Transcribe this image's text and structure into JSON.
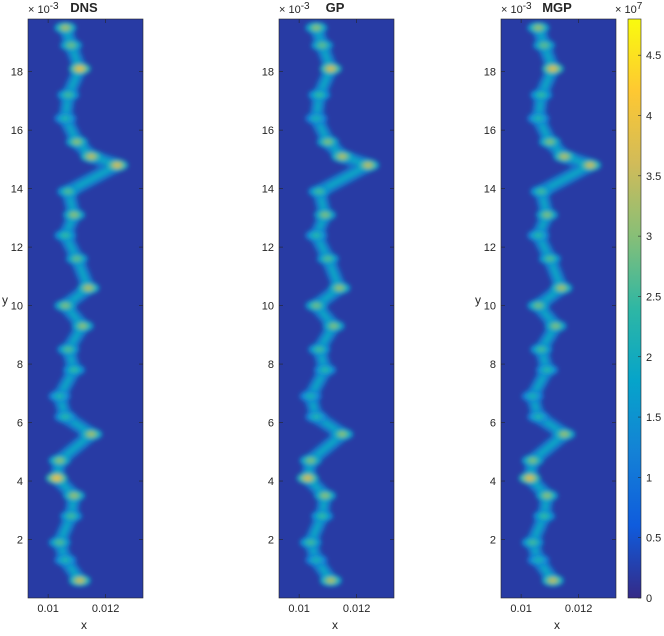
{
  "figure": {
    "colorbar": {
      "multiplier_base": "× 10",
      "multiplier_exp": "7",
      "ticks": [
        0,
        0.5,
        1,
        1.5,
        2,
        2.5,
        3,
        3.5,
        4,
        4.5
      ],
      "tick_labels": [
        "0",
        "0.5",
        "1",
        "1.5",
        "2",
        "2.5",
        "3",
        "3.5",
        "4",
        "4.5"
      ],
      "range": [
        0,
        4.8
      ],
      "colormap": "parula",
      "colormap_stops": [
        "#352a87",
        "#0f5cdd",
        "#1481d6",
        "#06a4ca",
        "#2eb7a4",
        "#87bf77",
        "#d1bb59",
        "#fec832",
        "#f9fb0e"
      ]
    }
  },
  "chart_data": [
    {
      "type": "heatmap",
      "title": "DNS",
      "xlabel": "x",
      "ylabel": "y",
      "xlim": [
        0.0093,
        0.0133
      ],
      "ylim": [
        0,
        0.0198
      ],
      "x_ticks": [
        0.01,
        0.012
      ],
      "x_tick_labels": [
        "0.01",
        "0.012"
      ],
      "y_ticks": [
        2,
        4,
        6,
        8,
        10,
        12,
        14,
        16,
        18
      ],
      "y_tick_labels": [
        "2",
        "4",
        "6",
        "8",
        "10",
        "12",
        "14",
        "16",
        "18"
      ],
      "y_multiplier_base": "× 10",
      "y_multiplier_exp": "-3",
      "background_value": 0.2,
      "hot_spots": [
        {
          "y": 0.0195,
          "x": 0.0106,
          "value": 3.2
        },
        {
          "y": 0.0189,
          "x": 0.0108,
          "value": 2.8
        },
        {
          "y": 0.0181,
          "x": 0.0111,
          "value": 3.8
        },
        {
          "y": 0.0172,
          "x": 0.0107,
          "value": 2.5
        },
        {
          "y": 0.0164,
          "x": 0.0106,
          "value": 2.2
        },
        {
          "y": 0.0156,
          "x": 0.011,
          "value": 3.0
        },
        {
          "y": 0.0151,
          "x": 0.0115,
          "value": 3.4
        },
        {
          "y": 0.0148,
          "x": 0.0124,
          "value": 3.6
        },
        {
          "y": 0.0139,
          "x": 0.0107,
          "value": 2.6
        },
        {
          "y": 0.0131,
          "x": 0.0109,
          "value": 3.0
        },
        {
          "y": 0.0124,
          "x": 0.0106,
          "value": 2.4
        },
        {
          "y": 0.0116,
          "x": 0.011,
          "value": 2.7
        },
        {
          "y": 0.0106,
          "x": 0.0114,
          "value": 3.3
        },
        {
          "y": 0.01,
          "x": 0.0106,
          "value": 2.9
        },
        {
          "y": 0.0093,
          "x": 0.0112,
          "value": 3.0
        },
        {
          "y": 0.0085,
          "x": 0.0107,
          "value": 2.6
        },
        {
          "y": 0.0078,
          "x": 0.0109,
          "value": 2.4
        },
        {
          "y": 0.0069,
          "x": 0.0104,
          "value": 2.2
        },
        {
          "y": 0.0062,
          "x": 0.0106,
          "value": 2.3
        },
        {
          "y": 0.0056,
          "x": 0.0115,
          "value": 3.2
        },
        {
          "y": 0.0047,
          "x": 0.0104,
          "value": 3.0
        },
        {
          "y": 0.0041,
          "x": 0.0103,
          "value": 3.9
        },
        {
          "y": 0.0035,
          "x": 0.0109,
          "value": 3.1
        },
        {
          "y": 0.0028,
          "x": 0.0108,
          "value": 2.5
        },
        {
          "y": 0.0019,
          "x": 0.0104,
          "value": 2.6
        },
        {
          "y": 0.0013,
          "x": 0.0106,
          "value": 2.2
        },
        {
          "y": 0.0006,
          "x": 0.0111,
          "value": 3.5
        }
      ]
    },
    {
      "type": "heatmap",
      "title": "GP",
      "xlabel": "x",
      "ylabel": "",
      "xlim": [
        0.0093,
        0.0133
      ],
      "ylim": [
        0,
        0.0198
      ],
      "x_ticks": [
        0.01,
        0.012
      ],
      "x_tick_labels": [
        "0.01",
        "0.012"
      ],
      "y_ticks": [
        2,
        4,
        6,
        8,
        10,
        12,
        14,
        16,
        18
      ],
      "y_tick_labels": [
        "2",
        "4",
        "6",
        "8",
        "10",
        "12",
        "14",
        "16",
        "18"
      ],
      "y_multiplier_base": "× 10",
      "y_multiplier_exp": "-3",
      "background_value": 0.2,
      "hot_spots": [
        {
          "y": 0.0195,
          "x": 0.0106,
          "value": 3.0
        },
        {
          "y": 0.0189,
          "x": 0.0108,
          "value": 2.7
        },
        {
          "y": 0.0181,
          "x": 0.0111,
          "value": 3.6
        },
        {
          "y": 0.0172,
          "x": 0.0107,
          "value": 2.4
        },
        {
          "y": 0.0164,
          "x": 0.0106,
          "value": 2.1
        },
        {
          "y": 0.0156,
          "x": 0.011,
          "value": 2.9
        },
        {
          "y": 0.0151,
          "x": 0.0115,
          "value": 3.3
        },
        {
          "y": 0.0148,
          "x": 0.0124,
          "value": 3.4
        },
        {
          "y": 0.0139,
          "x": 0.0107,
          "value": 2.5
        },
        {
          "y": 0.0131,
          "x": 0.0109,
          "value": 2.9
        },
        {
          "y": 0.0124,
          "x": 0.0106,
          "value": 2.3
        },
        {
          "y": 0.0116,
          "x": 0.011,
          "value": 2.6
        },
        {
          "y": 0.0106,
          "x": 0.0114,
          "value": 3.1
        },
        {
          "y": 0.01,
          "x": 0.0106,
          "value": 2.8
        },
        {
          "y": 0.0093,
          "x": 0.0112,
          "value": 2.9
        },
        {
          "y": 0.0085,
          "x": 0.0107,
          "value": 2.5
        },
        {
          "y": 0.0078,
          "x": 0.0109,
          "value": 2.3
        },
        {
          "y": 0.0069,
          "x": 0.0104,
          "value": 2.1
        },
        {
          "y": 0.0062,
          "x": 0.0106,
          "value": 2.2
        },
        {
          "y": 0.0056,
          "x": 0.0115,
          "value": 3.0
        },
        {
          "y": 0.0047,
          "x": 0.0104,
          "value": 2.9
        },
        {
          "y": 0.0041,
          "x": 0.0103,
          "value": 3.6
        },
        {
          "y": 0.0035,
          "x": 0.0109,
          "value": 3.0
        },
        {
          "y": 0.0028,
          "x": 0.0108,
          "value": 2.4
        },
        {
          "y": 0.0019,
          "x": 0.0104,
          "value": 2.5
        },
        {
          "y": 0.0013,
          "x": 0.0106,
          "value": 2.1
        },
        {
          "y": 0.0006,
          "x": 0.0111,
          "value": 3.3
        }
      ]
    },
    {
      "type": "heatmap",
      "title": "MGP",
      "xlabel": "x",
      "ylabel": "y",
      "xlim": [
        0.0093,
        0.0133
      ],
      "ylim": [
        0,
        0.0198
      ],
      "x_ticks": [
        0.01,
        0.012
      ],
      "x_tick_labels": [
        "0.01",
        "0.012"
      ],
      "y_ticks": [
        2,
        4,
        6,
        8,
        10,
        12,
        14,
        16,
        18
      ],
      "y_tick_labels": [
        "2",
        "4",
        "6",
        "8",
        "10",
        "12",
        "14",
        "16",
        "18"
      ],
      "y_multiplier_base": "× 10",
      "y_multiplier_exp": "-3",
      "background_value": 0.2,
      "hot_spots": [
        {
          "y": 0.0195,
          "x": 0.0106,
          "value": 3.1
        },
        {
          "y": 0.0189,
          "x": 0.0108,
          "value": 2.7
        },
        {
          "y": 0.0181,
          "x": 0.0111,
          "value": 3.7
        },
        {
          "y": 0.0172,
          "x": 0.0107,
          "value": 2.4
        },
        {
          "y": 0.0164,
          "x": 0.0106,
          "value": 2.2
        },
        {
          "y": 0.0156,
          "x": 0.011,
          "value": 2.9
        },
        {
          "y": 0.0151,
          "x": 0.0115,
          "value": 3.3
        },
        {
          "y": 0.0148,
          "x": 0.0124,
          "value": 3.5
        },
        {
          "y": 0.0139,
          "x": 0.0107,
          "value": 2.5
        },
        {
          "y": 0.0131,
          "x": 0.0109,
          "value": 2.9
        },
        {
          "y": 0.0124,
          "x": 0.0106,
          "value": 2.3
        },
        {
          "y": 0.0116,
          "x": 0.011,
          "value": 2.6
        },
        {
          "y": 0.0106,
          "x": 0.0114,
          "value": 3.2
        },
        {
          "y": 0.01,
          "x": 0.0106,
          "value": 2.8
        },
        {
          "y": 0.0093,
          "x": 0.0112,
          "value": 2.9
        },
        {
          "y": 0.0085,
          "x": 0.0107,
          "value": 2.5
        },
        {
          "y": 0.0078,
          "x": 0.0109,
          "value": 2.3
        },
        {
          "y": 0.0069,
          "x": 0.0104,
          "value": 2.1
        },
        {
          "y": 0.0062,
          "x": 0.0106,
          "value": 2.2
        },
        {
          "y": 0.0056,
          "x": 0.0115,
          "value": 3.1
        },
        {
          "y": 0.0047,
          "x": 0.0104,
          "value": 2.9
        },
        {
          "y": 0.0041,
          "x": 0.0103,
          "value": 3.7
        },
        {
          "y": 0.0035,
          "x": 0.0109,
          "value": 3.0
        },
        {
          "y": 0.0028,
          "x": 0.0108,
          "value": 2.4
        },
        {
          "y": 0.0019,
          "x": 0.0104,
          "value": 2.5
        },
        {
          "y": 0.0013,
          "x": 0.0106,
          "value": 2.1
        },
        {
          "y": 0.0006,
          "x": 0.0111,
          "value": 3.4
        }
      ]
    }
  ]
}
